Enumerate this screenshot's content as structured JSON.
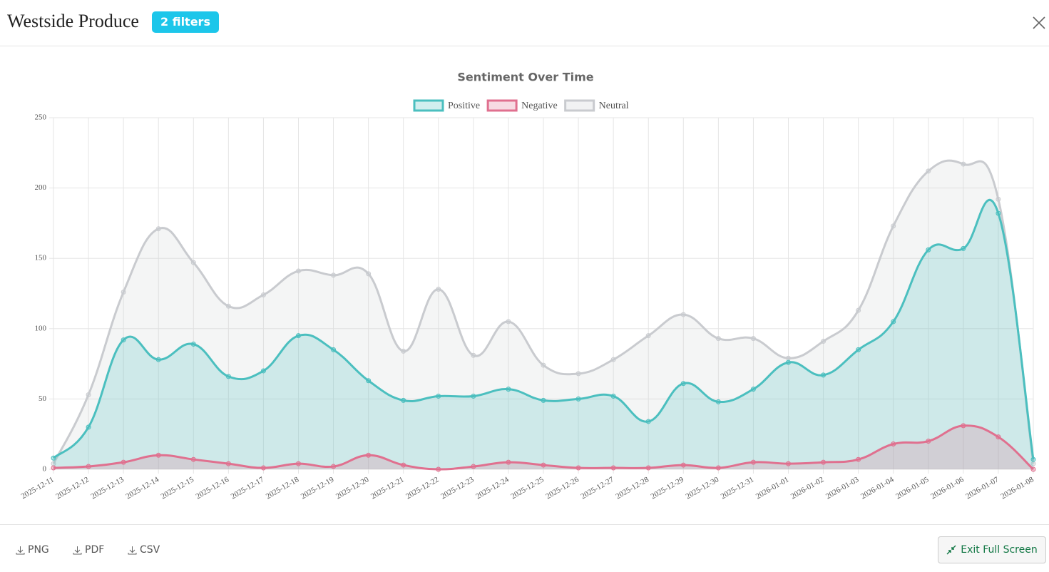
{
  "header": {
    "title": "Westside Produce",
    "badge": "2 filters"
  },
  "chart_data": {
    "type": "line",
    "title": "Sentiment Over Time",
    "categories": [
      "2025-12-11",
      "2025-12-12",
      "2025-12-13",
      "2025-12-14",
      "2025-12-15",
      "2025-12-16",
      "2025-12-17",
      "2025-12-18",
      "2025-12-19",
      "2025-12-20",
      "2025-12-21",
      "2025-12-22",
      "2025-12-23",
      "2025-12-24",
      "2025-12-25",
      "2025-12-26",
      "2025-12-27",
      "2025-12-28",
      "2025-12-29",
      "2025-12-30",
      "2025-12-31",
      "2026-01-01",
      "2026-01-02",
      "2026-01-03",
      "2026-01-04",
      "2026-01-05",
      "2026-01-06",
      "2026-01-07",
      "2026-01-08"
    ],
    "series": [
      {
        "name": "Positive",
        "color": "#4bbfbf",
        "values": [
          8,
          30,
          92,
          78,
          89,
          66,
          70,
          95,
          85,
          63,
          49,
          52,
          52,
          57,
          49,
          50,
          52,
          34,
          61,
          48,
          57,
          76,
          67,
          85,
          105,
          156,
          157,
          182,
          7
        ]
      },
      {
        "name": "Negative",
        "color": "#e0708f",
        "values": [
          1,
          2,
          5,
          10,
          7,
          4,
          1,
          4,
          2,
          10,
          3,
          0,
          2,
          5,
          3,
          1,
          1,
          1,
          3,
          1,
          5,
          4,
          5,
          7,
          18,
          20,
          31,
          23,
          0
        ]
      },
      {
        "name": "Neutral",
        "color": "#c9cbcf",
        "values": [
          4,
          53,
          126,
          171,
          147,
          116,
          124,
          141,
          138,
          139,
          84,
          128,
          81,
          105,
          74,
          68,
          78,
          95,
          110,
          93,
          93,
          79,
          91,
          113,
          173,
          212,
          217,
          192,
          4
        ]
      }
    ],
    "ylim": [
      0,
      250
    ],
    "yticks": [
      0,
      50,
      100,
      150,
      200,
      250
    ],
    "grid": true,
    "fill": true,
    "legend": "top"
  },
  "footer": {
    "exports": [
      "PNG",
      "PDF",
      "CSV"
    ],
    "exit": "Exit Full Screen"
  }
}
